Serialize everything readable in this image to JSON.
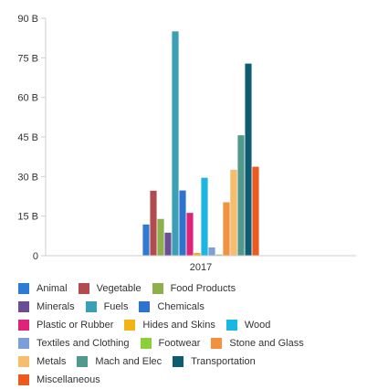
{
  "chart_data": {
    "type": "bar",
    "categories": [
      "2017"
    ],
    "series": [
      {
        "name": "Animal",
        "color": "#2E7BD6",
        "values": [
          11.8
        ]
      },
      {
        "name": "Vegetable",
        "color": "#B24A4E",
        "values": [
          24.6
        ]
      },
      {
        "name": "Food Products",
        "color": "#8FAE4C",
        "values": [
          13.9
        ]
      },
      {
        "name": "Minerals",
        "color": "#6A4F94",
        "values": [
          8.7
        ]
      },
      {
        "name": "Fuels",
        "color": "#3AA0B8",
        "values": [
          85.0
        ]
      },
      {
        "name": "Chemicals",
        "color": "#2C74D0",
        "values": [
          24.7
        ]
      },
      {
        "name": "Plastic or Rubber",
        "color": "#E0227A",
        "values": [
          16.2
        ]
      },
      {
        "name": "Hides and Skins",
        "color": "#F3B316",
        "values": [
          1.0
        ]
      },
      {
        "name": "Wood",
        "color": "#19B6E6",
        "values": [
          29.5
        ]
      },
      {
        "name": "Textiles and Clothing",
        "color": "#7E9ED8",
        "values": [
          3.1
        ]
      },
      {
        "name": "Footwear",
        "color": "#8CCF3A",
        "values": [
          0.4
        ]
      },
      {
        "name": "Stone and Glass",
        "color": "#F2923D",
        "values": [
          20.2
        ]
      },
      {
        "name": "Metals",
        "color": "#F7BD6A",
        "values": [
          32.5
        ]
      },
      {
        "name": "Mach and Elec",
        "color": "#4F9A8C",
        "values": [
          45.6
        ]
      },
      {
        "name": "Transportation",
        "color": "#0C5C72",
        "values": [
          72.8
        ]
      },
      {
        "name": "Miscellaneous",
        "color": "#EE5A1E",
        "values": [
          33.7
        ]
      }
    ],
    "ylim": [
      0,
      90
    ],
    "yticks": [
      0,
      15,
      30,
      45,
      60,
      75,
      90
    ],
    "ytick_labels": [
      "0",
      "15 B",
      "30 B",
      "45 B",
      "60 B",
      "75 B",
      "90 B"
    ],
    "grid": false,
    "legend_placement": "bottom"
  }
}
